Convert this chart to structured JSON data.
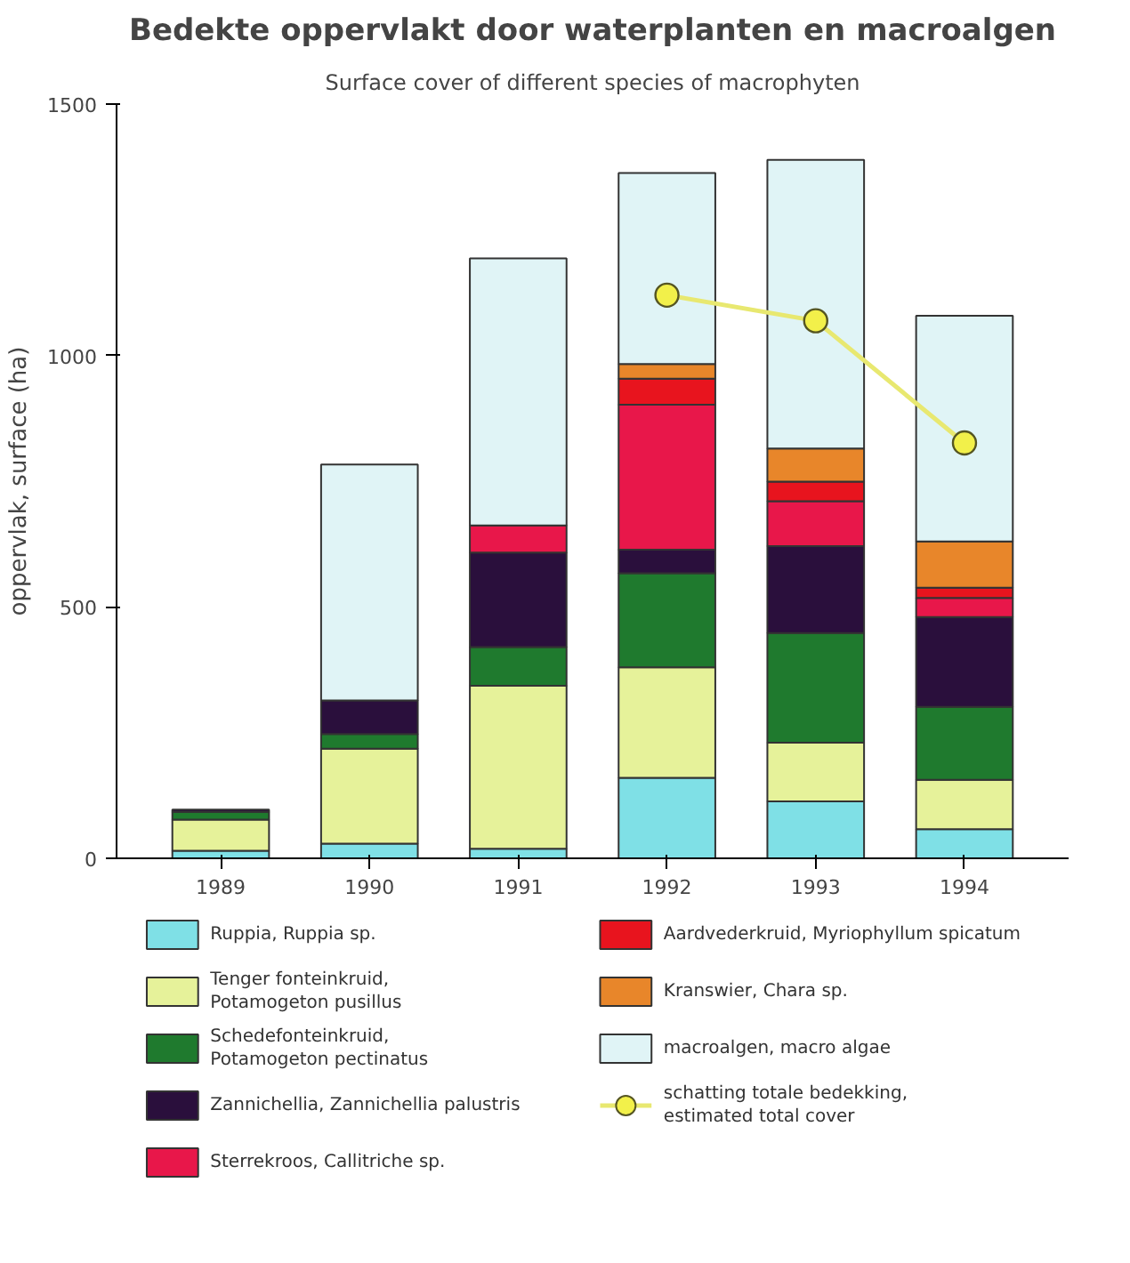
{
  "chart_data": {
    "type": "bar",
    "stacked": true,
    "title": "Bedekte oppervlakt door waterplanten en macroalgen",
    "subtitle": "Surface cover of different species of macrophyten",
    "ylabel": "oppervlak, surface (ha)",
    "categories": [
      "1989",
      "1990",
      "1991",
      "1992",
      "1993",
      "1994"
    ],
    "ylim": [
      0,
      1500
    ],
    "yticks": [
      0,
      500,
      1000,
      1500
    ],
    "grid": false,
    "legend": "bottom",
    "series": [
      {
        "name": "Ruppia, Ruppia sp.",
        "color": "#7fe0e6",
        "values": [
          15,
          29,
          19,
          160,
          113,
          58
        ]
      },
      {
        "name": "Tenger fonteinkruid, Potamogeton pusillus",
        "color": "#e6f29a",
        "values": [
          62,
          189,
          324,
          220,
          117,
          98
        ]
      },
      {
        "name": "Schedefonteinkruid, Potamogeton pectinatus",
        "color": "#1f7a2e",
        "values": [
          15,
          29,
          77,
          187,
          218,
          145
        ]
      },
      {
        "name": "Zannichellia, Zannichellia palustris",
        "color": "#2a0f3c",
        "values": [
          5,
          67,
          188,
          47,
          173,
          179
        ]
      },
      {
        "name": "Sterrekroos, Callitriche sp.",
        "color": "#e8174a",
        "values": [
          null,
          null,
          54,
          288,
          89,
          38
        ]
      },
      {
        "name": "Aardvederkruid, Myriophyllum spicatum",
        "color": "#e8141e",
        "values": [
          null,
          null,
          null,
          52,
          39,
          20
        ]
      },
      {
        "name": "Kranswier, Chara sp.",
        "color": "#e8862a",
        "values": [
          null,
          null,
          null,
          29,
          66,
          92
        ]
      },
      {
        "name": "macroalgen, macro algae",
        "color": "#e0f4f6",
        "values": [
          null,
          469,
          531,
          380,
          574,
          449
        ]
      },
      {
        "name": "schatting totale bedekking, estimated total cover",
        "type": "line",
        "marker": "circle",
        "color": "#e8e870",
        "values": [
          null,
          null,
          null,
          1120,
          1069,
          826
        ]
      }
    ]
  }
}
